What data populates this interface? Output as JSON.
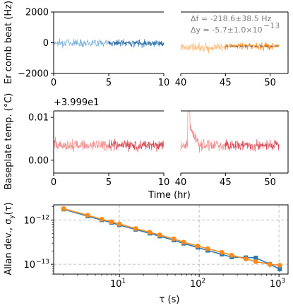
{
  "colors": {
    "blue_light": "#7fb1d8",
    "blue_dark": "#2e78b0",
    "orange_light": "#ffbb78",
    "orange_dark": "#ff8a1c",
    "red_light": "#ee8a8a",
    "red_dark": "#d94a55",
    "grid": "#b0b0b0",
    "annotation": "#7f7f7f"
  },
  "chart_data": [
    {
      "id": "comb",
      "type": "line",
      "ylabel": "Er comb beat (Hz)",
      "yticks": [
        2000,
        0,
        -2000
      ],
      "ytick_labels": [
        "2000",
        "0",
        "−2000"
      ],
      "ylim": [
        -2000,
        2000
      ],
      "segments": [
        {
          "xlim": [
            0,
            10
          ],
          "xticks": [
            0,
            5,
            10
          ],
          "xtick_labels": [
            "0",
            "5",
            "10"
          ],
          "series": [
            {
              "color": "blue_light",
              "x_range": [
                0,
                5
              ],
              "mean": 0,
              "noise": 180
            },
            {
              "color": "blue_dark",
              "x_range": [
                5,
                10
              ],
              "mean": -20,
              "noise": 160,
              "fit_line": true
            }
          ]
        },
        {
          "xlim": [
            40,
            52
          ],
          "xticks": [
            40,
            45,
            50
          ],
          "xtick_labels": [
            "40",
            "45",
            "50"
          ],
          "series": [
            {
              "color": "orange_light",
              "x_range": [
                40,
                45
              ],
              "mean": -300,
              "noise": 200
            },
            {
              "color": "orange_dark",
              "x_range": [
                45,
                51
              ],
              "mean": -220,
              "noise": 180,
              "fit_line": true
            }
          ]
        }
      ],
      "annotations": [
        "Δf = -218.6±38.5 Hz",
        "Δy = -5.7±1.0×10",
        "−13"
      ]
    },
    {
      "id": "temp",
      "type": "line",
      "ylabel": "Baseplate temp. (°C)",
      "offset_label": "+3.999e1",
      "yticks": [
        0.01,
        0.0
      ],
      "ytick_labels": [
        "0.01",
        "0.00"
      ],
      "ylim": [
        -0.003,
        0.0115
      ],
      "xlabel": "Time (hr)",
      "segments": [
        {
          "xlim": [
            0,
            10
          ],
          "xticks": [
            0,
            5,
            10
          ],
          "xtick_labels": [
            "0",
            "5",
            "10"
          ],
          "series": [
            {
              "color": "red_light",
              "x_range": [
                0,
                5
              ],
              "mean": 0.0035,
              "noise": 0.0009
            },
            {
              "color": "red_dark",
              "x_range": [
                5,
                10
              ],
              "mean": 0.0035,
              "noise": 0.0009
            }
          ]
        },
        {
          "xlim": [
            40,
            52
          ],
          "xticks": [
            40,
            45,
            50
          ],
          "xtick_labels": [
            "40",
            "45",
            "50"
          ],
          "series": [
            {
              "color": "red_light",
              "x_range": [
                40,
                45
              ],
              "mean": 0.0035,
              "noise": 0.0009,
              "spike_at": 40.9
            },
            {
              "color": "red_dark",
              "x_range": [
                45,
                51
              ],
              "mean": 0.0035,
              "noise": 0.0009
            }
          ]
        }
      ]
    },
    {
      "id": "allan",
      "type": "line",
      "scale": "log-log",
      "xlabel": "τ (s)",
      "ylabel": "Allan dev., σ",
      "ylabel_sub": "y",
      "ylabel_tail": "(τ)",
      "xlim": [
        1.5,
        1300
      ],
      "ylim": [
        6e-14,
        2.2e-12
      ],
      "xticks": [
        10,
        100,
        1000
      ],
      "xtick_bases": [
        "10",
        "10",
        "10"
      ],
      "xtick_exps": [
        "1",
        "2",
        "3"
      ],
      "yticks": [
        1e-12,
        1e-13
      ],
      "ytick_bases": [
        "10",
        "10"
      ],
      "ytick_exps": [
        "−12",
        "−13"
      ],
      "grid": true,
      "series": [
        {
          "color": "blue_dark",
          "marker": "square",
          "x": [
            2,
            4,
            6,
            8,
            10,
            16,
            24,
            32,
            48,
            64,
            96,
            128,
            192,
            256,
            384,
            512,
            768,
            1024
          ],
          "y": [
            1.75e-12,
            1.22e-12,
            1e-12,
            8.7e-13,
            7.7e-13,
            6.1e-13,
            5e-13,
            4.3e-13,
            3.5e-13,
            2.95e-13,
            2.4e-13,
            2.05e-13,
            1.68e-13,
            1.45e-13,
            1.42e-13,
            1.4e-13,
            1e-13,
            7.8e-14
          ],
          "err": [
            0,
            0,
            0,
            0,
            0,
            0,
            0,
            0,
            0,
            0,
            0,
            0,
            0,
            0,
            0,
            1.5e-14,
            1.5e-14,
            1e-14
          ]
        },
        {
          "color": "orange_dark",
          "marker": "circle",
          "x": [
            2,
            4,
            6,
            8,
            10,
            16,
            24,
            32,
            48,
            64,
            96,
            128,
            192,
            256,
            384,
            512,
            768,
            1024
          ],
          "y": [
            1.8e-12,
            1.28e-12,
            1.04e-12,
            9.1e-13,
            8.1e-13,
            6.4e-13,
            5.3e-13,
            4.6e-13,
            3.75e-13,
            3.15e-13,
            2.6e-13,
            2.25e-13,
            1.86e-13,
            1.6e-13,
            1.32e-13,
            1.15e-13,
            1e-13,
            9.5e-14
          ],
          "err": [
            0,
            0,
            0,
            0,
            0,
            0,
            0,
            0,
            0,
            0,
            0,
            0,
            0,
            0,
            0,
            1e-14,
            1.2e-14,
            1.2e-14
          ]
        }
      ]
    }
  ]
}
